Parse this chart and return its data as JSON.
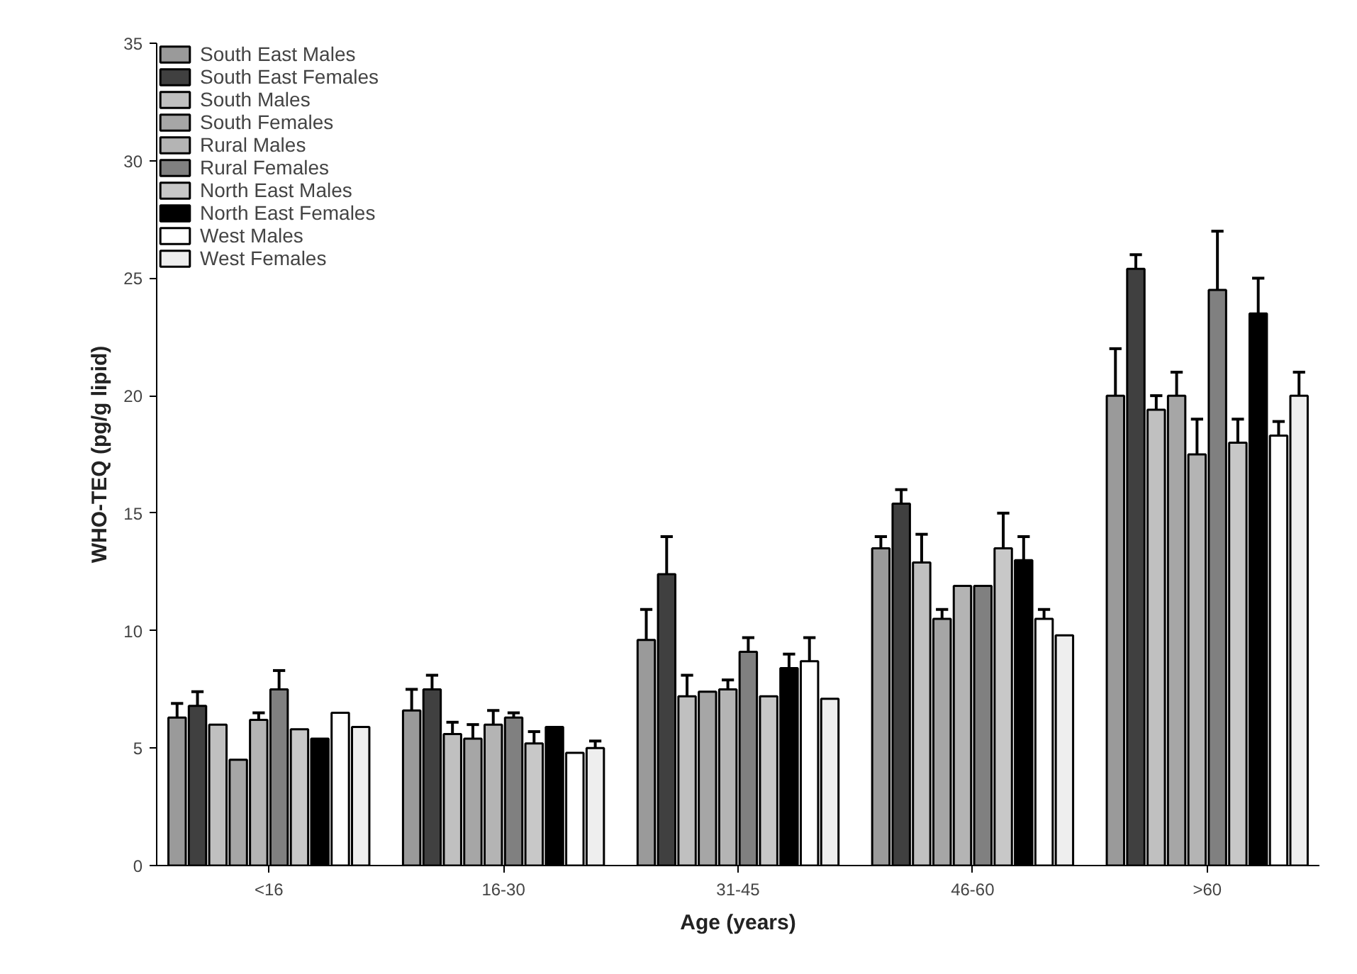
{
  "chart_data": {
    "type": "bar",
    "xlabel": "Age (years)",
    "ylabel": "WHO-TEQ (pg/g lipid)",
    "categories": [
      "<16",
      "16-30",
      "31-45",
      "46-60",
      ">60"
    ],
    "ylim": [
      0,
      35
    ],
    "yticks": [
      0,
      5,
      10,
      15,
      20,
      25,
      30,
      35
    ],
    "grid": false,
    "legend": "top left",
    "series": [
      {
        "name": "South East Males",
        "color": "#9a9a9a",
        "values": [
          6.3,
          6.6,
          9.6,
          13.5,
          20.0
        ],
        "errors": [
          0.6,
          0.9,
          1.3,
          0.5,
          2.0
        ]
      },
      {
        "name": "South East Females",
        "color": "#404040",
        "values": [
          6.8,
          7.5,
          12.4,
          15.4,
          25.4
        ],
        "errors": [
          0.6,
          0.6,
          1.6,
          0.6,
          0.6
        ]
      },
      {
        "name": "South Males",
        "color": "#c0c0c0",
        "values": [
          6.0,
          5.6,
          7.2,
          12.9,
          19.4
        ],
        "errors": [
          null,
          0.5,
          0.9,
          1.2,
          0.6
        ]
      },
      {
        "name": "South Females",
        "color": "#a6a6a6",
        "values": [
          4.5,
          5.4,
          7.4,
          10.5,
          20.0
        ],
        "errors": [
          null,
          0.6,
          null,
          0.4,
          1.0
        ]
      },
      {
        "name": "Rural Males",
        "color": "#b4b4b4",
        "values": [
          6.2,
          6.0,
          7.5,
          11.9,
          17.5
        ],
        "errors": [
          0.3,
          0.6,
          0.4,
          null,
          1.5
        ]
      },
      {
        "name": "Rural Females",
        "color": "#808080",
        "values": [
          7.5,
          6.3,
          9.1,
          11.9,
          24.5
        ],
        "errors": [
          0.8,
          0.2,
          0.6,
          null,
          2.5
        ]
      },
      {
        "name": "North East Males",
        "color": "#c8c8c8",
        "values": [
          5.8,
          5.2,
          7.2,
          13.5,
          18.0
        ],
        "errors": [
          null,
          0.5,
          null,
          1.5,
          1.0
        ]
      },
      {
        "name": "North East Females",
        "color": "#000000",
        "values": [
          5.4,
          5.9,
          8.4,
          13.0,
          23.5
        ],
        "errors": [
          null,
          null,
          0.6,
          1.0,
          1.5
        ]
      },
      {
        "name": "West Males",
        "color": "#ffffff",
        "values": [
          6.5,
          4.8,
          8.7,
          10.5,
          18.3
        ],
        "errors": [
          null,
          null,
          1.0,
          0.4,
          0.6
        ]
      },
      {
        "name": "West Females",
        "color": "#eeeeee",
        "values": [
          5.9,
          5.0,
          7.1,
          9.8,
          20.0
        ],
        "errors": [
          null,
          0.3,
          null,
          null,
          1.0
        ]
      }
    ]
  }
}
